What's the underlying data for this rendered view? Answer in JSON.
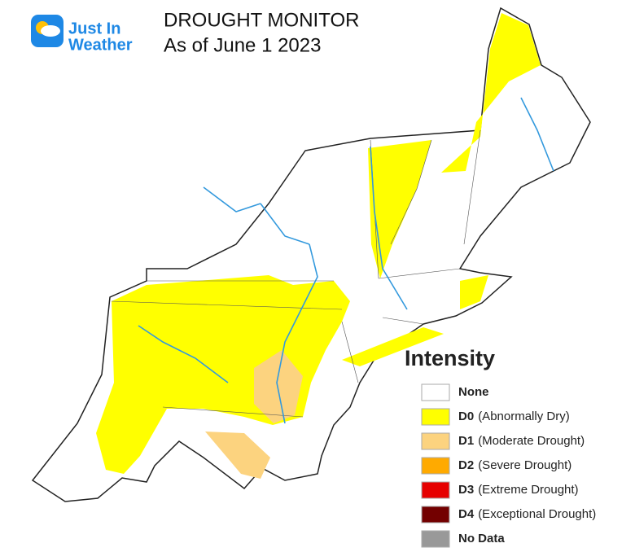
{
  "logo": {
    "line1": "Just In",
    "line2": "Weather"
  },
  "header": {
    "title": "DROUGHT MONITOR",
    "subtitle": "As of June 1 2023"
  },
  "legend": {
    "title": "Intensity",
    "items": [
      {
        "code": "None",
        "color": "#ffffff"
      },
      {
        "code": "D0",
        "description": "(Abnormally Dry)",
        "color": "#ffff00"
      },
      {
        "code": "D1",
        "description": "(Moderate Drought)",
        "color": "#fcd37f"
      },
      {
        "code": "D2",
        "description": "(Severe Drought)",
        "color": "#ffaa00"
      },
      {
        "code": "D3",
        "description": "(Extreme Drought)",
        "color": "#e60000"
      },
      {
        "code": "D4",
        "description": "(Exceptional Drought)",
        "color": "#730000"
      },
      {
        "code": "No Data",
        "color": "#999999"
      }
    ]
  }
}
